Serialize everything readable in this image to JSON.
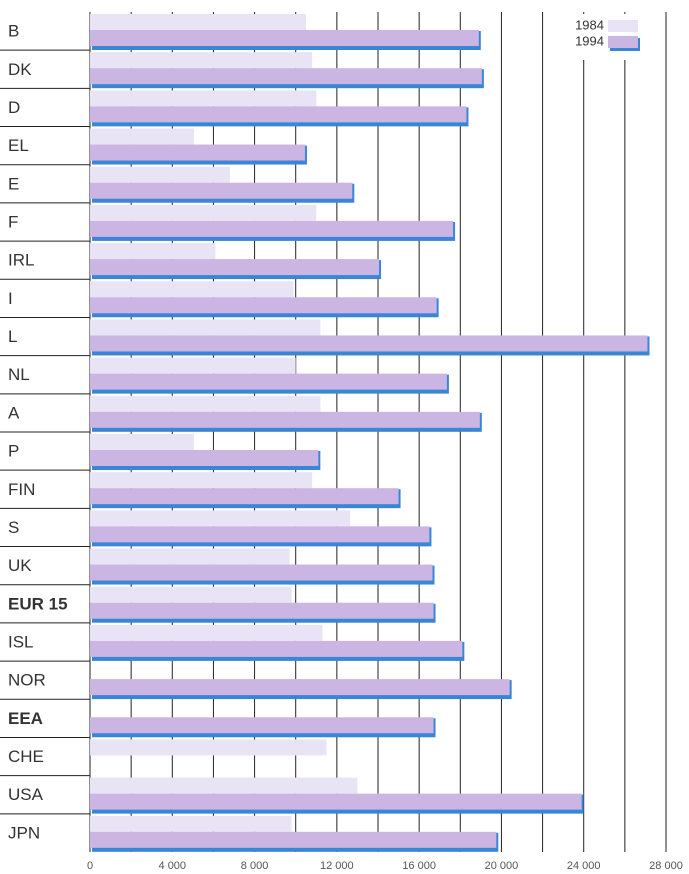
{
  "chart_data": {
    "type": "hbar",
    "categories": [
      "B",
      "DK",
      "D",
      "EL",
      "E",
      "F",
      "IRL",
      "I",
      "L",
      "NL",
      "A",
      "P",
      "FIN",
      "S",
      "UK",
      "EUR 15",
      "ISL",
      "NOR",
      "EEA",
      "CHE",
      "USA",
      "JPN"
    ],
    "bold_category_indices": [
      15,
      18
    ],
    "series": [
      {
        "name": "1984",
        "color": "#e9e4f5",
        "values": [
          10500,
          10800,
          11000,
          5050,
          6800,
          11000,
          6100,
          9900,
          11200,
          10000,
          11200,
          5050,
          10800,
          12650,
          9700,
          9800,
          11300,
          null,
          null,
          11500,
          13000,
          9800
        ]
      },
      {
        "name": "1994",
        "color": "#cbb5e2",
        "shadow_color": "#3a86d6",
        "values": [
          18900,
          19050,
          18300,
          10450,
          12750,
          17650,
          14050,
          16850,
          27100,
          17350,
          18950,
          11100,
          15000,
          16500,
          16650,
          16700,
          18100,
          20400,
          16700,
          null,
          23900,
          19750
        ]
      }
    ],
    "xlim": [
      0,
      28000
    ],
    "xticks": [
      0,
      {
        "value": 4000,
        "label": "4 000"
      },
      {
        "value": 8000,
        "label": "8 000"
      },
      {
        "value": 12000,
        "label": "12 000"
      },
      {
        "value": 16000,
        "label": "16 000"
      },
      {
        "value": 20000,
        "label": "20 000"
      },
      {
        "value": 24000,
        "label": "24 000"
      },
      {
        "value": 28000,
        "label": "28 000"
      }
    ],
    "x_minor_ticks": [
      2000,
      6000,
      10000,
      14000,
      18000,
      22000,
      26000
    ],
    "grid": true,
    "legend": "upper right"
  }
}
